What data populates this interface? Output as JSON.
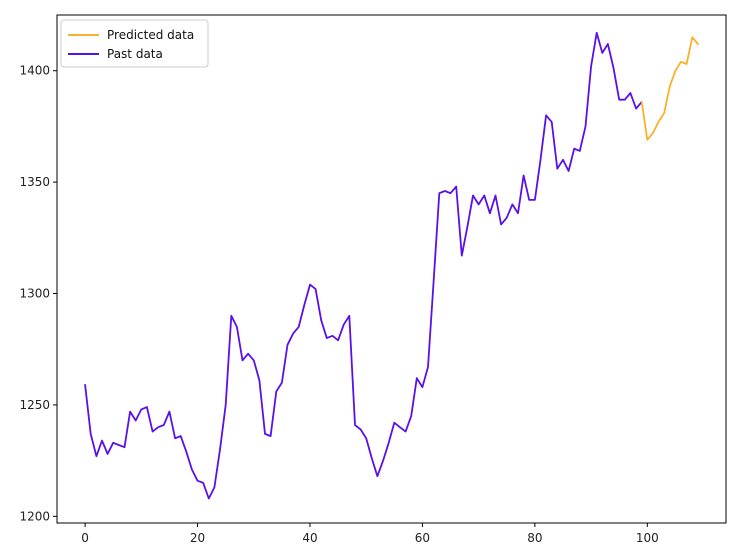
{
  "chart_data": {
    "type": "line",
    "title": "",
    "xlabel": "",
    "ylabel": "",
    "xlim": [
      -5,
      114
    ],
    "ylim": [
      1197,
      1425
    ],
    "x_ticks": [
      0,
      20,
      40,
      60,
      80,
      100
    ],
    "y_ticks": [
      1200,
      1250,
      1300,
      1350,
      1400
    ],
    "grid": false,
    "legend_position": "top-left",
    "series": [
      {
        "name": "Past data",
        "color": "#5a10e8",
        "x": [
          0,
          1,
          2,
          3,
          4,
          5,
          6,
          7,
          8,
          9,
          10,
          11,
          12,
          13,
          14,
          15,
          16,
          17,
          18,
          19,
          20,
          21,
          22,
          23,
          24,
          25,
          26,
          27,
          28,
          29,
          30,
          31,
          32,
          33,
          34,
          35,
          36,
          37,
          38,
          39,
          40,
          41,
          42,
          43,
          44,
          45,
          46,
          47,
          48,
          49,
          50,
          51,
          52,
          53,
          54,
          55,
          56,
          57,
          58,
          59,
          60,
          61,
          62,
          63,
          64,
          65,
          66,
          67,
          68,
          69,
          70,
          71,
          72,
          73,
          74,
          75,
          76,
          77,
          78,
          79,
          80,
          81,
          82,
          83,
          84,
          85,
          86,
          87,
          88,
          89,
          90,
          91,
          92,
          93,
          94,
          95,
          96,
          97,
          98,
          99
        ],
        "y": [
          1259,
          1237,
          1227,
          1234,
          1228,
          1233,
          1232,
          1231,
          1247,
          1243,
          1248,
          1249,
          1238,
          1240,
          1241,
          1247,
          1235,
          1236,
          1229,
          1221,
          1216,
          1215,
          1208,
          1213,
          1230,
          1250,
          1290,
          1285,
          1270,
          1273,
          1270,
          1261,
          1237,
          1236,
          1256,
          1260,
          1277,
          1282,
          1285,
          1295,
          1304,
          1302,
          1288,
          1280,
          1281,
          1279,
          1286,
          1290,
          1241,
          1239,
          1235,
          1226,
          1218,
          1225,
          1233,
          1242,
          1240,
          1238,
          1245,
          1262,
          1258,
          1267,
          1306,
          1345,
          1346,
          1345,
          1348,
          1317,
          1330,
          1344,
          1340,
          1344,
          1336,
          1344,
          1331,
          1334,
          1340,
          1336,
          1353,
          1342,
          1342,
          1360,
          1380,
          1377,
          1356,
          1360,
          1355,
          1365,
          1364,
          1375,
          1402,
          1417,
          1408,
          1412,
          1401,
          1387,
          1387,
          1390,
          1383,
          1386
        ]
      },
      {
        "name": "Predicted data",
        "color": "#fbb02d",
        "x": [
          99,
          100,
          101,
          102,
          103,
          104,
          105,
          106,
          107,
          108,
          109
        ],
        "y": [
          1386,
          1369,
          1372,
          1377,
          1381,
          1393,
          1400,
          1404,
          1403,
          1415,
          1412
        ]
      }
    ]
  }
}
